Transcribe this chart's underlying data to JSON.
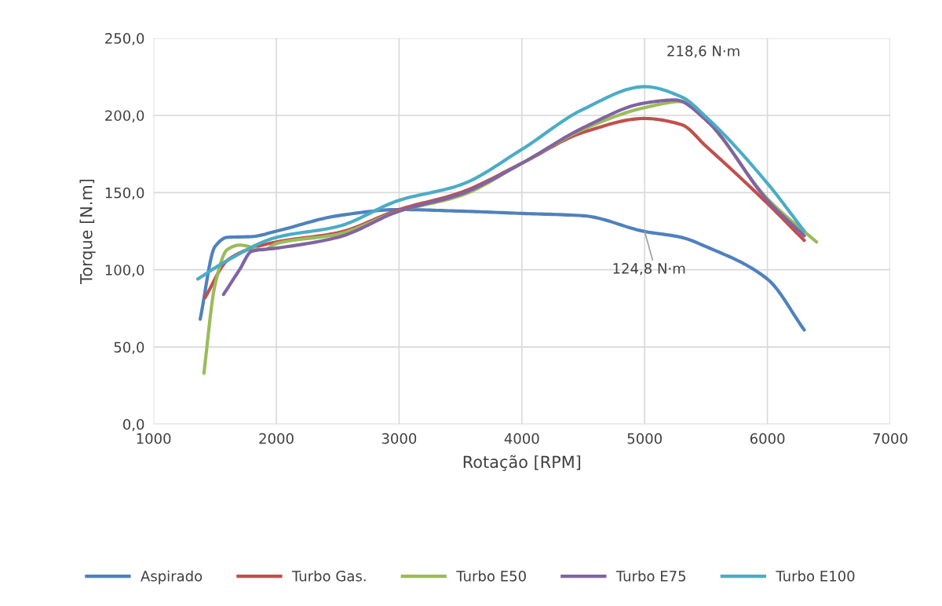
{
  "chart_data": {
    "type": "line",
    "xlabel": "Rotação [RPM]",
    "ylabel": "Torque [N.m]",
    "xlim": [
      1000,
      7000
    ],
    "xticks": [
      1000,
      2000,
      3000,
      4000,
      5000,
      6000,
      7000
    ],
    "ylim": [
      0,
      250
    ],
    "yticks": [
      {
        "value": 0,
        "label": "0,0"
      },
      {
        "value": 50,
        "label": "50,0"
      },
      {
        "value": 100,
        "label": "100,0"
      },
      {
        "value": 150,
        "label": "150,0"
      },
      {
        "value": 200,
        "label": "200,0"
      },
      {
        "value": 250,
        "label": "250,0"
      }
    ],
    "grid": true,
    "legend": "bottom",
    "marker": "none",
    "line_style": "solid",
    "series": [
      {
        "name": "Aspirado",
        "color": "#4f81bd",
        "x": [
          1380,
          1500,
          1600,
          1800,
          2000,
          2500,
          3000,
          3500,
          4000,
          4500,
          5000,
          5300,
          5500,
          6000,
          6300
        ],
        "values": [
          68,
          115,
          121,
          121.5,
          125,
          135,
          139,
          138,
          136.5,
          135,
          124.8,
          121,
          115,
          94,
          61
        ]
      },
      {
        "name": "Turbo Gas.",
        "color": "#c0504d",
        "x": [
          1420,
          1600,
          1800,
          2000,
          2500,
          3000,
          3500,
          4000,
          4500,
          5000,
          5300,
          5500,
          6000,
          6300
        ],
        "values": [
          82,
          106,
          114,
          118,
          124,
          139,
          150,
          169,
          189,
          198,
          194,
          180,
          143,
          119
        ]
      },
      {
        "name": "Turbo E50",
        "color": "#9bbb59",
        "x": [
          1410,
          1500,
          1600,
          1700,
          1900,
          2000,
          2500,
          3000,
          3500,
          4000,
          4500,
          5000,
          5300,
          5500,
          6000,
          6400
        ],
        "values": [
          33,
          90,
          113,
          116,
          113,
          117,
          123,
          138,
          148,
          169,
          191,
          205,
          209,
          197,
          146,
          118
        ]
      },
      {
        "name": "Turbo E75",
        "color": "#8064a2",
        "x": [
          1570,
          1700,
          1800,
          2000,
          2500,
          3000,
          3500,
          4000,
          4500,
          5000,
          5250,
          5500,
          6000,
          6300
        ],
        "values": [
          84,
          100,
          112,
          114,
          121,
          138,
          149,
          169,
          192,
          208,
          210,
          197,
          145,
          122
        ]
      },
      {
        "name": "Turbo E100",
        "color": "#4bacc6",
        "x": [
          1360,
          1600,
          2000,
          2500,
          3000,
          3500,
          4000,
          4500,
          5000,
          5300,
          5500,
          6000,
          6300
        ],
        "values": [
          94,
          106,
          121,
          128,
          145,
          155,
          178,
          204,
          218.6,
          212,
          199,
          156,
          125
        ]
      }
    ],
    "annotations": [
      {
        "text": "218,6 N·m",
        "x": 5000,
        "y": 218.6
      },
      {
        "text": "124,8 N·m",
        "x": 5000,
        "y": 124.8
      }
    ]
  }
}
